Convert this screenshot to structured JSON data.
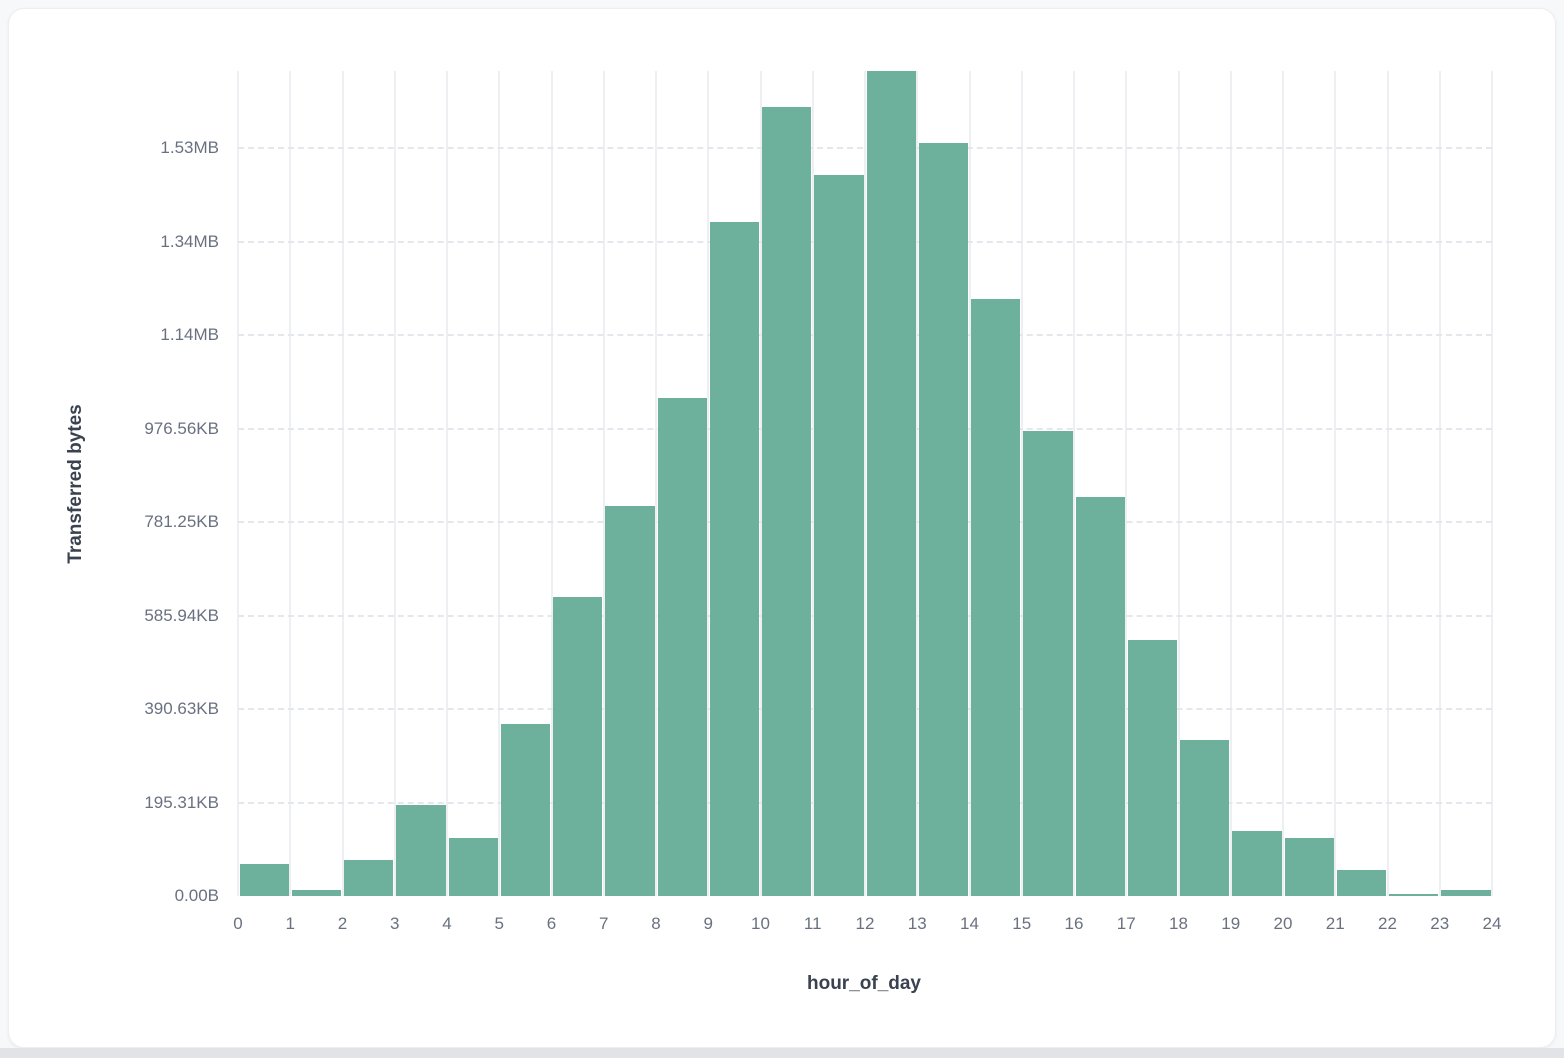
{
  "chart_data": {
    "type": "bar",
    "title": "",
    "xlabel": "hour_of_day",
    "ylabel": "Transferred bytes",
    "categories": [
      0,
      1,
      2,
      3,
      4,
      5,
      6,
      7,
      8,
      9,
      10,
      11,
      12,
      13,
      14,
      15,
      16,
      17,
      18,
      19,
      20,
      21,
      22,
      23
    ],
    "values": [
      68500,
      13000,
      77000,
      195000,
      124000,
      368000,
      640000,
      835000,
      1066000,
      1441000,
      1687000,
      1542000,
      1765000,
      1612000,
      1278000,
      994000,
      854000,
      548000,
      334000,
      139000,
      124000,
      56000,
      4000,
      13000
    ],
    "values_unit": "bytes",
    "x_ticks": [
      "0",
      "1",
      "2",
      "3",
      "4",
      "5",
      "6",
      "7",
      "8",
      "9",
      "10",
      "11",
      "12",
      "13",
      "14",
      "15",
      "16",
      "17",
      "18",
      "19",
      "20",
      "21",
      "22",
      "23",
      "24"
    ],
    "y_ticks": [
      {
        "label": "0.00B",
        "value": 0
      },
      {
        "label": "195.31KB",
        "value": 200000
      },
      {
        "label": "390.63KB",
        "value": 400000
      },
      {
        "label": "585.94KB",
        "value": 600000
      },
      {
        "label": "781.25KB",
        "value": 800000
      },
      {
        "label": "976.56KB",
        "value": 1000000
      },
      {
        "label": "1.14MB",
        "value": 1200000
      },
      {
        "label": "1.34MB",
        "value": 1400000
      },
      {
        "label": "1.53MB",
        "value": 1600000
      }
    ],
    "xlim": [
      0,
      24
    ],
    "ylim": [
      0,
      1765000
    ],
    "grid": {
      "vertical": "solid",
      "horizontal": "dashed"
    },
    "legend_position": "none",
    "colors": {
      "bar": "#6db19d",
      "vertical_grid": "#edeff3",
      "horizontal_grid": "#e4e7ec",
      "tick_label": "#697180",
      "axis_title": "#3a4250",
      "card_background": "#ffffff",
      "page_background": "#f7f8fa"
    }
  }
}
